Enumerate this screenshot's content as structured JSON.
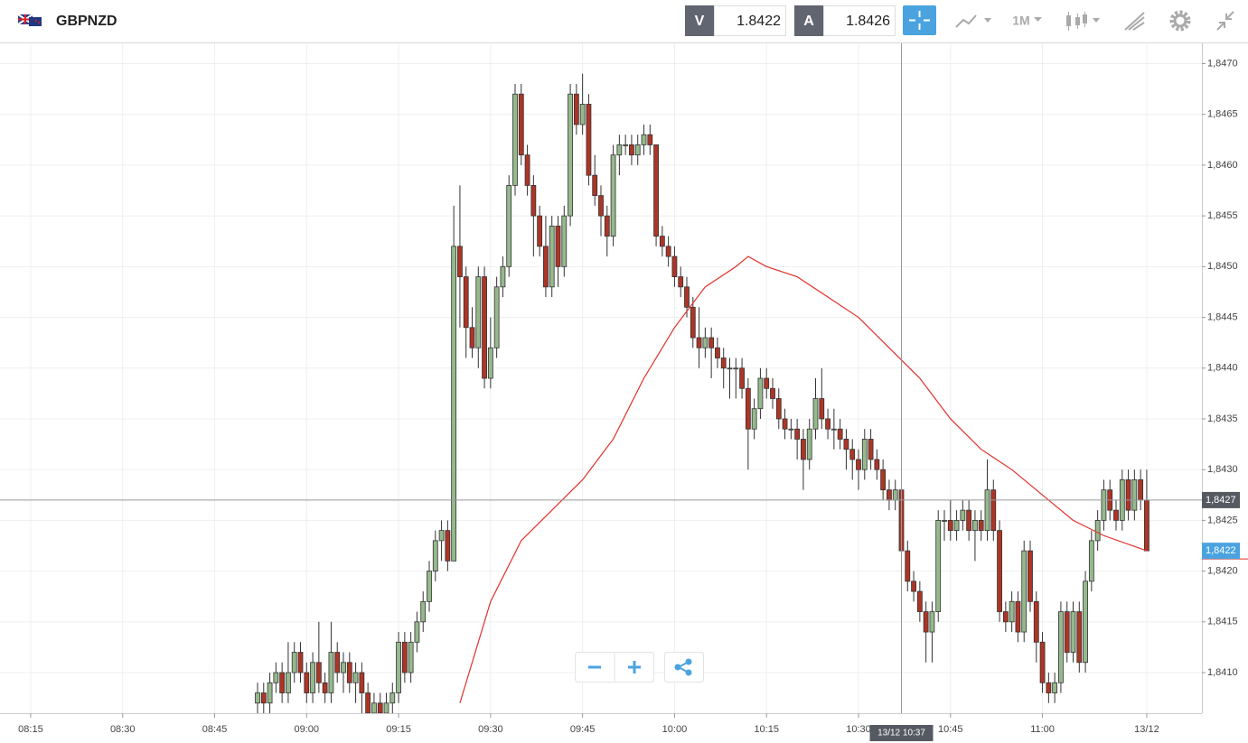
{
  "header": {
    "symbol": "GBPNZD",
    "bid_label": "V",
    "bid": "1.8422",
    "ask_label": "A",
    "ask": "1.8426",
    "timeframe": "1M"
  },
  "chart_data": {
    "type": "candlestick",
    "x": [
      "08:52",
      "08:53",
      "08:54",
      "08:55",
      "08:56",
      "08:57",
      "08:58",
      "08:59",
      "09:00",
      "09:01",
      "09:02",
      "09:03",
      "09:04",
      "09:05",
      "09:06",
      "09:07",
      "09:08",
      "09:09",
      "09:10",
      "09:11",
      "09:12",
      "09:13",
      "09:14",
      "09:15",
      "09:16",
      "09:17",
      "09:18",
      "09:19",
      "09:20",
      "09:21",
      "09:22",
      "09:23",
      "09:24",
      "09:25",
      "09:26",
      "09:27",
      "09:28",
      "09:29",
      "09:30",
      "09:31",
      "09:32",
      "09:33",
      "09:34",
      "09:35",
      "09:36",
      "09:37",
      "09:38",
      "09:39",
      "09:40",
      "09:41",
      "09:42",
      "09:43",
      "09:44",
      "09:45",
      "09:46",
      "09:47",
      "09:48",
      "09:49",
      "09:50",
      "09:51",
      "09:52",
      "09:53",
      "09:54",
      "09:55",
      "09:56",
      "09:57",
      "09:58",
      "09:59",
      "10:00",
      "10:01",
      "10:02",
      "10:03",
      "10:04",
      "10:05",
      "10:06",
      "10:07",
      "10:08",
      "10:09",
      "10:10",
      "10:11",
      "10:12",
      "10:13",
      "10:14",
      "10:15",
      "10:16",
      "10:17",
      "10:18",
      "10:19",
      "10:20",
      "10:21",
      "10:22",
      "10:23",
      "10:24",
      "10:25",
      "10:26",
      "10:27",
      "10:28",
      "10:29",
      "10:30",
      "10:31",
      "10:32",
      "10:33",
      "10:34",
      "10:35",
      "10:36",
      "10:37",
      "10:38",
      "10:39",
      "10:40",
      "10:41",
      "10:42",
      "10:43",
      "10:44",
      "10:45",
      "10:46",
      "10:47",
      "10:48",
      "10:49",
      "10:50",
      "10:51",
      "10:52",
      "10:53",
      "10:54",
      "10:55",
      "10:56",
      "10:57",
      "10:58",
      "10:59",
      "11:00",
      "11:01",
      "11:02",
      "11:03",
      "11:04",
      "11:05",
      "11:06",
      "11:07",
      "11:08",
      "11:09",
      "11:10",
      "11:11",
      "11:12",
      "11:13",
      "11:14",
      "11:15",
      "11:16",
      "11:17"
    ],
    "open": [
      1.8407,
      1.8408,
      1.8407,
      1.8409,
      1.841,
      1.8408,
      1.841,
      1.8412,
      1.841,
      1.8408,
      1.8411,
      1.8409,
      1.8408,
      1.8412,
      1.841,
      1.8411,
      1.8409,
      1.841,
      1.8408,
      1.8406,
      1.8407,
      1.8406,
      1.8407,
      1.8408,
      1.8413,
      1.841,
      1.8413,
      1.8415,
      1.8417,
      1.842,
      1.8423,
      1.8424,
      1.8421,
      1.8452,
      1.8449,
      1.8444,
      1.8442,
      1.8449,
      1.8439,
      1.8442,
      1.8448,
      1.845,
      1.8458,
      1.8467,
      1.8461,
      1.8458,
      1.8455,
      1.8452,
      1.8448,
      1.8454,
      1.845,
      1.8455,
      1.8467,
      1.8464,
      1.8466,
      1.8459,
      1.8457,
      1.8455,
      1.8453,
      1.8461,
      1.8462,
      1.8462,
      1.8461,
      1.8462,
      1.8463,
      1.8462,
      1.8453,
      1.8452,
      1.8451,
      1.8449,
      1.8448,
      1.8446,
      1.8443,
      1.8442,
      1.8443,
      1.8442,
      1.8441,
      1.844,
      1.844,
      1.844,
      1.8438,
      1.8434,
      1.8436,
      1.8439,
      1.8438,
      1.8437,
      1.8435,
      1.8434,
      1.8434,
      1.8433,
      1.8431,
      1.8434,
      1.8437,
      1.8435,
      1.8434,
      1.8434,
      1.8433,
      1.8432,
      1.8431,
      1.843,
      1.8433,
      1.8431,
      1.843,
      1.8428,
      1.8427,
      1.8428,
      1.8422,
      1.8419,
      1.8418,
      1.8416,
      1.8414,
      1.8416,
      1.8425,
      1.8425,
      1.8424,
      1.8425,
      1.8426,
      1.8424,
      1.8425,
      1.8424,
      1.8428,
      1.8424,
      1.8416,
      1.8415,
      1.8417,
      1.8414,
      1.8422,
      1.8417,
      1.8413,
      1.8409,
      1.8408,
      1.8409,
      1.8416,
      1.8412,
      1.8416,
      1.8411,
      1.8419,
      1.8423,
      1.8425,
      1.8428,
      1.8426,
      1.8425,
      1.8429,
      1.8426,
      1.8429,
      1.8427
    ],
    "high": [
      1.8409,
      1.8409,
      1.841,
      1.8411,
      1.8411,
      1.8413,
      1.8413,
      1.8413,
      1.8411,
      1.8412,
      1.8415,
      1.841,
      1.8415,
      1.8413,
      1.8412,
      1.8412,
      1.8411,
      1.8411,
      1.8409,
      1.8408,
      1.8408,
      1.8408,
      1.8409,
      1.8414,
      1.8414,
      1.8414,
      1.8416,
      1.8418,
      1.8421,
      1.8424,
      1.8425,
      1.8425,
      1.8456,
      1.8458,
      1.845,
      1.8446,
      1.845,
      1.845,
      1.8445,
      1.8449,
      1.8451,
      1.8459,
      1.8468,
      1.8468,
      1.8462,
      1.8459,
      1.8456,
      1.8455,
      1.8455,
      1.8455,
      1.8456,
      1.8468,
      1.8468,
      1.8469,
      1.8467,
      1.8461,
      1.8458,
      1.8456,
      1.8462,
      1.8463,
      1.8463,
      1.8463,
      1.8463,
      1.8464,
      1.8464,
      1.8462,
      1.8454,
      1.8453,
      1.8452,
      1.845,
      1.8449,
      1.8447,
      1.8446,
      1.8444,
      1.8444,
      1.8443,
      1.8442,
      1.8441,
      1.8441,
      1.8441,
      1.8439,
      1.8437,
      1.844,
      1.844,
      1.8439,
      1.8438,
      1.8436,
      1.8435,
      1.8435,
      1.8434,
      1.8435,
      1.8439,
      1.844,
      1.8436,
      1.8436,
      1.8435,
      1.8434,
      1.8433,
      1.8432,
      1.8434,
      1.8434,
      1.8432,
      1.8431,
      1.8429,
      1.8429,
      1.8428,
      1.8423,
      1.842,
      1.8419,
      1.8417,
      1.8417,
      1.8426,
      1.8426,
      1.8427,
      1.8426,
      1.8427,
      1.8427,
      1.8426,
      1.8426,
      1.8431,
      1.8429,
      1.8425,
      1.8417,
      1.8418,
      1.8418,
      1.8423,
      1.8423,
      1.8418,
      1.8414,
      1.841,
      1.841,
      1.8417,
      1.8417,
      1.8417,
      1.8417,
      1.842,
      1.8424,
      1.8426,
      1.8429,
      1.8429,
      1.8427,
      1.843,
      1.843,
      1.843,
      1.843,
      1.843
    ],
    "low": [
      1.8406,
      1.8406,
      1.8406,
      1.8408,
      1.8407,
      1.8407,
      1.8409,
      1.8409,
      1.8407,
      1.8407,
      1.8408,
      1.8407,
      1.8407,
      1.8409,
      1.8408,
      1.8408,
      1.8407,
      1.8406,
      1.8405,
      1.8405,
      1.8405,
      1.8405,
      1.8406,
      1.8407,
      1.8409,
      1.8409,
      1.8412,
      1.8414,
      1.8416,
      1.8419,
      1.8421,
      1.842,
      1.8421,
      1.8444,
      1.8441,
      1.8441,
      1.844,
      1.8438,
      1.8438,
      1.8441,
      1.8447,
      1.8449,
      1.8457,
      1.846,
      1.8457,
      1.8451,
      1.8451,
      1.8447,
      1.8447,
      1.8448,
      1.8449,
      1.8454,
      1.8463,
      1.8463,
      1.8458,
      1.8456,
      1.8453,
      1.8451,
      1.8452,
      1.8459,
      1.8461,
      1.846,
      1.846,
      1.8461,
      1.8461,
      1.8452,
      1.8451,
      1.845,
      1.8448,
      1.8447,
      1.8445,
      1.8442,
      1.844,
      1.8441,
      1.8439,
      1.844,
      1.8438,
      1.8437,
      1.8437,
      1.8437,
      1.843,
      1.8433,
      1.8435,
      1.8437,
      1.8436,
      1.8434,
      1.8433,
      1.8433,
      1.8431,
      1.8428,
      1.843,
      1.8433,
      1.8434,
      1.8433,
      1.8432,
      1.8432,
      1.843,
      1.8429,
      1.8428,
      1.8429,
      1.843,
      1.8429,
      1.8427,
      1.8426,
      1.8426,
      1.8421,
      1.8418,
      1.8417,
      1.8415,
      1.8411,
      1.8411,
      1.8415,
      1.8423,
      1.8423,
      1.8423,
      1.8424,
      1.8423,
      1.8421,
      1.8423,
      1.8423,
      1.8423,
      1.8415,
      1.8414,
      1.8414,
      1.8413,
      1.8413,
      1.8416,
      1.8411,
      1.8408,
      1.8407,
      1.8407,
      1.8408,
      1.8411,
      1.8411,
      1.841,
      1.841,
      1.8418,
      1.8422,
      1.8424,
      1.8425,
      1.8424,
      1.8424,
      1.8425,
      1.8425,
      1.8426,
      1.8422
    ],
    "close": [
      1.8408,
      1.8407,
      1.8409,
      1.841,
      1.8408,
      1.841,
      1.8412,
      1.841,
      1.8408,
      1.8411,
      1.8409,
      1.8408,
      1.8412,
      1.841,
      1.8411,
      1.8409,
      1.841,
      1.8408,
      1.8406,
      1.8407,
      1.8406,
      1.8407,
      1.8408,
      1.8413,
      1.841,
      1.8413,
      1.8415,
      1.8417,
      1.842,
      1.8423,
      1.8424,
      1.8421,
      1.8452,
      1.8449,
      1.8444,
      1.8442,
      1.8449,
      1.8439,
      1.8442,
      1.8448,
      1.845,
      1.8458,
      1.8467,
      1.8461,
      1.8458,
      1.8455,
      1.8452,
      1.8448,
      1.8454,
      1.845,
      1.8455,
      1.8467,
      1.8464,
      1.8466,
      1.8459,
      1.8457,
      1.8455,
      1.8453,
      1.8461,
      1.8462,
      1.8462,
      1.8461,
      1.8462,
      1.8463,
      1.8462,
      1.8453,
      1.8452,
      1.8451,
      1.8449,
      1.8448,
      1.8446,
      1.8443,
      1.8442,
      1.8443,
      1.8442,
      1.8441,
      1.844,
      1.844,
      1.844,
      1.8438,
      1.8434,
      1.8436,
      1.8439,
      1.8438,
      1.8437,
      1.8435,
      1.8434,
      1.8434,
      1.8433,
      1.8431,
      1.8434,
      1.8437,
      1.8435,
      1.8434,
      1.8434,
      1.8433,
      1.8432,
      1.8431,
      1.843,
      1.8433,
      1.8431,
      1.843,
      1.8428,
      1.8427,
      1.8428,
      1.8422,
      1.8419,
      1.8418,
      1.8416,
      1.8414,
      1.8416,
      1.8425,
      1.8425,
      1.8424,
      1.8425,
      1.8426,
      1.8424,
      1.8425,
      1.8424,
      1.8428,
      1.8424,
      1.8416,
      1.8415,
      1.8417,
      1.8414,
      1.8422,
      1.8417,
      1.8413,
      1.8409,
      1.8408,
      1.8409,
      1.8416,
      1.8412,
      1.8416,
      1.8411,
      1.8419,
      1.8423,
      1.8425,
      1.8428,
      1.8426,
      1.8425,
      1.8429,
      1.8426,
      1.8429,
      1.8427,
      1.8422
    ],
    "up_color": "#95b98c",
    "down_color": "#ad3526",
    "overlay": {
      "color": "#e0302a",
      "x": [
        "09:25",
        "09:30",
        "09:35",
        "09:40",
        "09:45",
        "09:50",
        "09:55",
        "10:00",
        "10:05",
        "10:10",
        "10:12",
        "10:15",
        "10:20",
        "10:25",
        "10:30",
        "10:35",
        "10:40",
        "10:45",
        "10:50",
        "10:55",
        "11:00",
        "11:05",
        "11:10",
        "11:17"
      ],
      "values": [
        1.8407,
        1.8417,
        1.8423,
        1.8426,
        1.8429,
        1.8433,
        1.8439,
        1.8444,
        1.8448,
        1.845,
        1.8451,
        1.845,
        1.8449,
        1.8447,
        1.8445,
        1.8442,
        1.8439,
        1.8435,
        1.8432,
        1.843,
        1.84275,
        1.8425,
        1.84235,
        1.8422
      ]
    },
    "ylim": [
      1.8406,
      1.8472
    ],
    "xlim": [
      "08:10",
      "11:26"
    ],
    "yticks": [
      {
        "value": 1.841,
        "label": "1,8410"
      },
      {
        "value": 1.8415,
        "label": "1,8415"
      },
      {
        "value": 1.842,
        "label": "1,8420"
      },
      {
        "value": 1.8425,
        "label": "1,8425"
      },
      {
        "value": 1.843,
        "label": "1,8430"
      },
      {
        "value": 1.8435,
        "label": "1,8435"
      },
      {
        "value": 1.844,
        "label": "1,8440"
      },
      {
        "value": 1.8445,
        "label": "1,8445"
      },
      {
        "value": 1.845,
        "label": "1,8450"
      },
      {
        "value": 1.8455,
        "label": "1,8455"
      },
      {
        "value": 1.846,
        "label": "1,8460"
      },
      {
        "value": 1.8465,
        "label": "1,8465"
      },
      {
        "value": 1.847,
        "label": "1,8470"
      }
    ],
    "xticks": [
      "08:15",
      "08:30",
      "08:45",
      "09:00",
      "09:15",
      "09:30",
      "09:45",
      "10:00",
      "10:15",
      "10:30",
      "10:45",
      "11:00",
      {
        "value": "11:17",
        "label": "13/12"
      }
    ],
    "grid": true,
    "crosshair": {
      "y": {
        "value": 1.8427,
        "label": "1,8427"
      },
      "x": {
        "value": "10:37",
        "label": "13/12 10:37"
      }
    },
    "last_price": {
      "value": 1.8422,
      "label": "1,8422",
      "color": "#4aa3df"
    }
  }
}
